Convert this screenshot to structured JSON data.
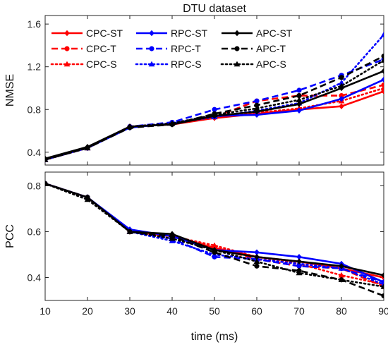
{
  "chart_data": [
    {
      "type": "line",
      "title": "DTU dataset",
      "xlabel": "",
      "ylabel": "NMSE",
      "x": [
        10,
        20,
        30,
        40,
        50,
        60,
        70,
        80,
        90
      ],
      "xlim": [
        10,
        90
      ],
      "ylim": [
        0.28,
        1.68
      ],
      "xticks": [
        10,
        20,
        30,
        40,
        50,
        60,
        70,
        80,
        90
      ],
      "yticks": [
        0.4,
        0.8,
        1.2,
        1.6
      ],
      "ytick_labels": [
        "0.4",
        "0.8",
        "1.2",
        "1.6"
      ],
      "grid": false,
      "legend": "top, 3 columns",
      "series": [
        {
          "name": "CPC-ST",
          "color": "#ff0000",
          "dash": "solid",
          "marker": "diamond",
          "values": [
            0.33,
            0.44,
            0.64,
            0.66,
            0.72,
            0.76,
            0.8,
            0.83,
            0.97
          ]
        },
        {
          "name": "CPC-T",
          "color": "#ff0000",
          "dash": "dashed",
          "marker": "circle",
          "values": [
            0.33,
            0.44,
            0.64,
            0.67,
            0.73,
            0.88,
            0.93,
            0.93,
            1.03
          ]
        },
        {
          "name": "CPC-S",
          "color": "#ff0000",
          "dash": "dotted",
          "marker": "triangle",
          "values": [
            0.33,
            0.44,
            0.64,
            0.67,
            0.73,
            0.77,
            0.81,
            0.88,
            1.0
          ]
        },
        {
          "name": "RPC-ST",
          "color": "#0000ff",
          "dash": "solid",
          "marker": "diamond",
          "values": [
            0.33,
            0.44,
            0.63,
            0.67,
            0.74,
            0.75,
            0.79,
            0.9,
            1.08
          ]
        },
        {
          "name": "RPC-T",
          "color": "#0000ff",
          "dash": "dashed",
          "marker": "circle",
          "values": [
            0.33,
            0.44,
            0.64,
            0.68,
            0.8,
            0.88,
            0.98,
            1.12,
            1.27
          ]
        },
        {
          "name": "RPC-S",
          "color": "#0000ff",
          "dash": "dotted",
          "marker": "triangle",
          "values": [
            0.33,
            0.44,
            0.64,
            0.67,
            0.73,
            0.79,
            0.86,
            1.05,
            1.5
          ]
        },
        {
          "name": "APC-ST",
          "color": "#000000",
          "dash": "solid",
          "marker": "diamond",
          "values": [
            0.34,
            0.45,
            0.64,
            0.66,
            0.74,
            0.78,
            0.85,
            1.0,
            1.16
          ]
        },
        {
          "name": "APC-T",
          "color": "#000000",
          "dash": "dashed",
          "marker": "circle",
          "values": [
            0.33,
            0.44,
            0.63,
            0.66,
            0.76,
            0.84,
            0.93,
            1.1,
            1.3
          ]
        },
        {
          "name": "APC-S",
          "color": "#000000",
          "dash": "dotted",
          "marker": "triangle",
          "values": [
            0.33,
            0.44,
            0.64,
            0.67,
            0.75,
            0.81,
            0.89,
            1.02,
            1.26
          ]
        }
      ]
    },
    {
      "type": "line",
      "title": "",
      "xlabel": "time (ms)",
      "ylabel": "PCC",
      "x": [
        10,
        20,
        30,
        40,
        50,
        60,
        70,
        80,
        90
      ],
      "xlim": [
        10,
        90
      ],
      "xticks": [
        10,
        20,
        30,
        40,
        50,
        60,
        70,
        80,
        90
      ],
      "xtick_labels": [
        "10",
        "20",
        "30",
        "40",
        "50",
        "60",
        "70",
        "80",
        "90"
      ],
      "ylim": [
        0.3,
        0.86
      ],
      "yticks": [
        0.4,
        0.6,
        0.8
      ],
      "ytick_labels": [
        "0.4",
        "0.6",
        "0.8"
      ],
      "grid": false,
      "series": [
        {
          "name": "CPC-ST",
          "color": "#ff0000",
          "dash": "solid",
          "marker": "diamond",
          "values": [
            0.81,
            0.75,
            0.6,
            0.58,
            0.53,
            0.49,
            0.47,
            0.44,
            0.4
          ]
        },
        {
          "name": "CPC-T",
          "color": "#ff0000",
          "dash": "dashed",
          "marker": "circle",
          "values": [
            0.81,
            0.75,
            0.6,
            0.58,
            0.53,
            0.48,
            0.45,
            0.44,
            0.36
          ]
        },
        {
          "name": "CPC-S",
          "color": "#ff0000",
          "dash": "dotted",
          "marker": "triangle",
          "values": [
            0.81,
            0.75,
            0.6,
            0.58,
            0.54,
            0.49,
            0.46,
            0.41,
            0.37
          ]
        },
        {
          "name": "RPC-ST",
          "color": "#0000ff",
          "dash": "solid",
          "marker": "diamond",
          "values": [
            0.81,
            0.75,
            0.61,
            0.58,
            0.52,
            0.51,
            0.49,
            0.46,
            0.38
          ]
        },
        {
          "name": "RPC-T",
          "color": "#0000ff",
          "dash": "dashed",
          "marker": "circle",
          "values": [
            0.81,
            0.75,
            0.6,
            0.57,
            0.49,
            0.48,
            0.45,
            0.44,
            0.38
          ]
        },
        {
          "name": "RPC-S",
          "color": "#0000ff",
          "dash": "dotted",
          "marker": "triangle",
          "values": [
            0.81,
            0.75,
            0.6,
            0.56,
            0.5,
            0.48,
            0.46,
            0.44,
            0.37
          ]
        },
        {
          "name": "APC-ST",
          "color": "#000000",
          "dash": "solid",
          "marker": "diamond",
          "values": [
            0.81,
            0.75,
            0.6,
            0.59,
            0.52,
            0.49,
            0.47,
            0.45,
            0.41
          ]
        },
        {
          "name": "APC-T",
          "color": "#000000",
          "dash": "dashed",
          "marker": "circle",
          "values": [
            0.81,
            0.75,
            0.6,
            0.58,
            0.51,
            0.45,
            0.43,
            0.39,
            0.32
          ]
        },
        {
          "name": "APC-S",
          "color": "#000000",
          "dash": "dotted",
          "marker": "triangle",
          "values": [
            0.81,
            0.74,
            0.6,
            0.57,
            0.52,
            0.47,
            0.42,
            0.39,
            0.36
          ]
        }
      ]
    }
  ]
}
